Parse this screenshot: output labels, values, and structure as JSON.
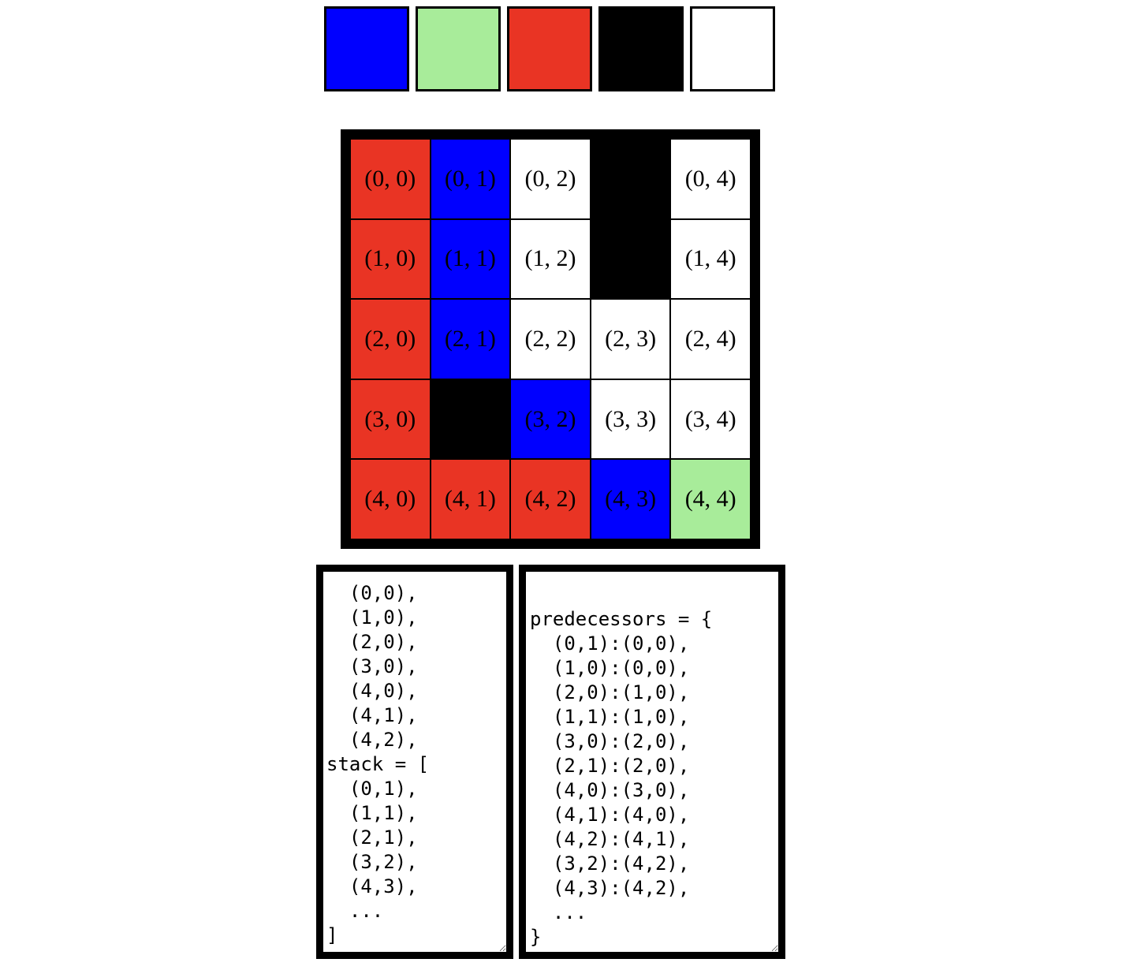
{
  "palette": [
    {
      "name": "blue",
      "color": "#0000ff"
    },
    {
      "name": "light-green",
      "color": "#a8ec9a"
    },
    {
      "name": "red",
      "color": "#e93424"
    },
    {
      "name": "black",
      "color": "#000000"
    },
    {
      "name": "white",
      "color": "#ffffff"
    }
  ],
  "grid": {
    "rows": 5,
    "cols": 5,
    "cells": [
      [
        {
          "label": "(0, 0)",
          "color": "#e93424"
        },
        {
          "label": "(0, 1)",
          "color": "#0000ff"
        },
        {
          "label": "(0, 2)",
          "color": "#ffffff"
        },
        {
          "label": "",
          "color": "#000000"
        },
        {
          "label": "(0, 4)",
          "color": "#ffffff"
        }
      ],
      [
        {
          "label": "(1, 0)",
          "color": "#e93424"
        },
        {
          "label": "(1, 1)",
          "color": "#0000ff"
        },
        {
          "label": "(1, 2)",
          "color": "#ffffff"
        },
        {
          "label": "",
          "color": "#000000"
        },
        {
          "label": "(1, 4)",
          "color": "#ffffff"
        }
      ],
      [
        {
          "label": "(2, 0)",
          "color": "#e93424"
        },
        {
          "label": "(2, 1)",
          "color": "#0000ff"
        },
        {
          "label": "(2, 2)",
          "color": "#ffffff"
        },
        {
          "label": "(2, 3)",
          "color": "#ffffff"
        },
        {
          "label": "(2, 4)",
          "color": "#ffffff"
        }
      ],
      [
        {
          "label": "(3, 0)",
          "color": "#e93424"
        },
        {
          "label": "",
          "color": "#000000"
        },
        {
          "label": "(3, 2)",
          "color": "#0000ff"
        },
        {
          "label": "(3, 3)",
          "color": "#ffffff"
        },
        {
          "label": "(3, 4)",
          "color": "#ffffff"
        }
      ],
      [
        {
          "label": "(4, 0)",
          "color": "#e93424"
        },
        {
          "label": "(4, 1)",
          "color": "#e93424"
        },
        {
          "label": "(4, 2)",
          "color": "#e93424"
        },
        {
          "label": "(4, 3)",
          "color": "#0000ff"
        },
        {
          "label": "(4, 4)",
          "color": "#a8ec9a"
        }
      ]
    ]
  },
  "stack_text": "  (0,0),\n  (1,0),\n  (2,0),\n  (3,0),\n  (4,0),\n  (4,1),\n  (4,2),\nstack = [\n  (0,1),\n  (1,1),\n  (2,1),\n  (3,2),\n  (4,3),\n  ...\n]",
  "predecessors_text": "predecessors = {\n  (0,1):(0,0),\n  (1,0):(0,0),\n  (2,0):(1,0),\n  (1,1):(1,0),\n  (3,0):(2,0),\n  (2,1):(2,0),\n  (4,0):(3,0),\n  (4,1):(4,0),\n  (4,2):(4,1),\n  (3,2):(4,2),\n  (4,3):(4,2),\n  ...\n}"
}
